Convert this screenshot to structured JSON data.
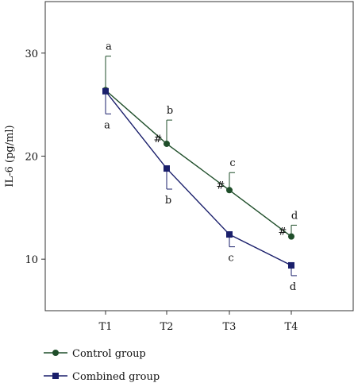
{
  "chart_data": {
    "type": "line",
    "ylabel": "IL-6 (pg/ml)",
    "xlabel": "",
    "categories": [
      "T1",
      "T2",
      "T3",
      "T4"
    ],
    "ylim": [
      5.0,
      35.0
    ],
    "yticks": [
      10,
      20,
      30
    ],
    "grid": false,
    "legend_position": "bottom-left",
    "series": [
      {
        "name": "Control group",
        "color": "#1f4e2a",
        "marker": "circle",
        "values": [
          26.4,
          21.2,
          16.7,
          12.2
        ],
        "error_plus": [
          3.3,
          2.3,
          1.7,
          1.1
        ],
        "error_minus": [
          0,
          0,
          0,
          0
        ]
      },
      {
        "name": "Combined group",
        "color": "#1a1f6b",
        "marker": "square",
        "values": [
          26.3,
          18.8,
          12.4,
          9.4
        ],
        "error_plus": [
          0,
          0,
          0,
          0
        ],
        "error_minus": [
          2.2,
          2.0,
          1.2,
          1.0
        ]
      }
    ],
    "annotations": [
      {
        "series": 0,
        "point": 0,
        "text": "a",
        "position": "above"
      },
      {
        "series": 1,
        "point": 0,
        "text": "a",
        "position": "below"
      },
      {
        "series": 0,
        "point": 1,
        "text": "b",
        "position": "above"
      },
      {
        "series": 0,
        "point": 1,
        "text": "#",
        "position": "left"
      },
      {
        "series": 1,
        "point": 1,
        "text": "b",
        "position": "below"
      },
      {
        "series": 0,
        "point": 2,
        "text": "c",
        "position": "above"
      },
      {
        "series": 0,
        "point": 2,
        "text": "#",
        "position": "left"
      },
      {
        "series": 1,
        "point": 2,
        "text": "c",
        "position": "below"
      },
      {
        "series": 0,
        "point": 3,
        "text": "d",
        "position": "above"
      },
      {
        "series": 0,
        "point": 3,
        "text": "#",
        "position": "left"
      },
      {
        "series": 1,
        "point": 3,
        "text": "d",
        "position": "below"
      }
    ]
  }
}
